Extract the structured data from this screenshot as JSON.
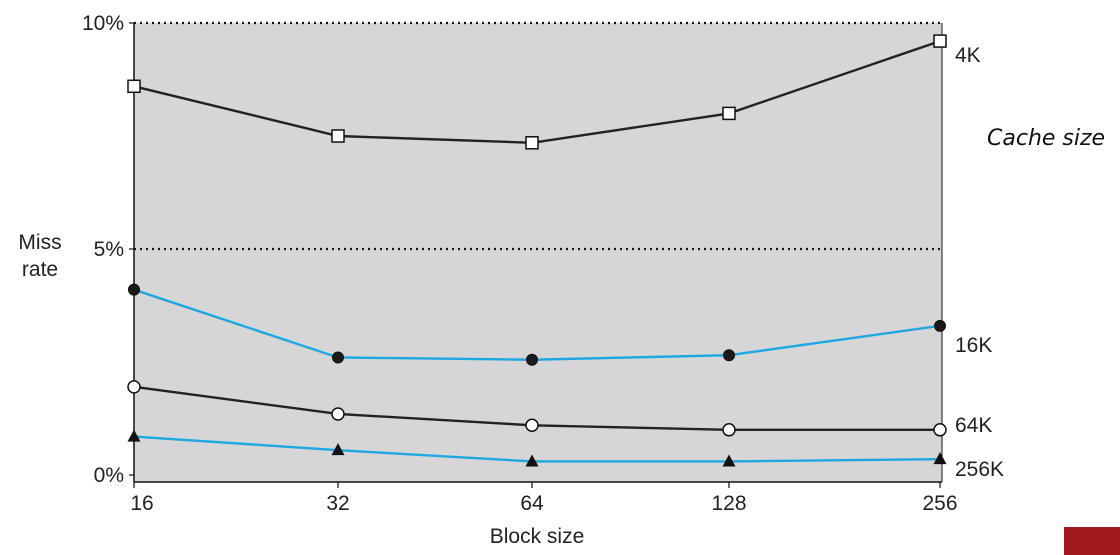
{
  "chart_data": {
    "type": "line",
    "xlabel": "Block size",
    "ylabel_line1": "Miss",
    "ylabel_line2": "rate",
    "x_categories": [
      "16",
      "32",
      "64",
      "128",
      "256"
    ],
    "y_ticks": [
      {
        "value": 0,
        "label": "0%"
      },
      {
        "value": 5,
        "label": "5%"
      },
      {
        "value": 10,
        "label": "10%"
      }
    ],
    "ylim": [
      0,
      10
    ],
    "grid": "dotted lines at 5% and 10%",
    "legend_title": "Cache size",
    "background_color": "#d6d6d8",
    "series": [
      {
        "name": "4K",
        "marker": "square-open",
        "color": "#222222",
        "values": [
          8.6,
          7.5,
          7.35,
          8.0,
          9.6
        ]
      },
      {
        "name": "16K",
        "marker": "circle-filled",
        "color": "#1ea7e1",
        "values": [
          4.1,
          2.6,
          2.55,
          2.65,
          3.3
        ]
      },
      {
        "name": "64K",
        "marker": "circle-open",
        "color": "#222222",
        "values": [
          1.95,
          1.35,
          1.1,
          1.0,
          1.0
        ]
      },
      {
        "name": "256K",
        "marker": "triangle-filled",
        "color": "#1ea7e1",
        "values": [
          0.85,
          0.55,
          0.3,
          0.3,
          0.35
        ]
      }
    ]
  }
}
